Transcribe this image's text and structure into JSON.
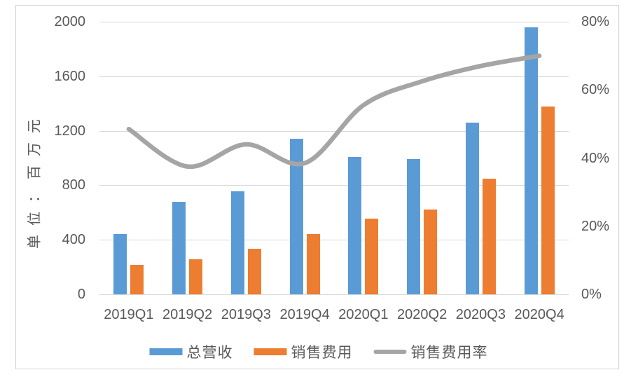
{
  "chart_data": {
    "type": "combo-bar-line",
    "categories": [
      "2019Q1",
      "2019Q2",
      "2019Q3",
      "2019Q4",
      "2020Q1",
      "2020Q2",
      "2020Q3",
      "2020Q4"
    ],
    "series": [
      {
        "key": "revenue",
        "name": "总营收",
        "type": "bar",
        "axis": "left",
        "color": "#5B9BD5",
        "values": [
          440,
          680,
          755,
          1140,
          1010,
          990,
          1260,
          1960
        ]
      },
      {
        "key": "selling-expense",
        "name": "销售费用",
        "type": "bar",
        "axis": "left",
        "color": "#ED7D31",
        "values": [
          215,
          255,
          335,
          440,
          555,
          620,
          850,
          1380
        ]
      },
      {
        "key": "selling-expense-ratio",
        "name": "销售费用率",
        "type": "line",
        "axis": "right",
        "color": "#A5A5A5",
        "unit": "%",
        "values": [
          48.5,
          37.5,
          44,
          38.5,
          55.5,
          62.5,
          67,
          70
        ]
      }
    ],
    "left_axis": {
      "title": "单位：百万元",
      "min": 0,
      "max": 2000,
      "tick_labels": [
        "0",
        "400",
        "800",
        "1200",
        "1600",
        "2000"
      ]
    },
    "right_axis": {
      "min": 0,
      "max": 80,
      "tick_labels": [
        "0%",
        "20%",
        "40%",
        "60%",
        "80%"
      ]
    },
    "grid": "horizontal",
    "legend_position": "bottom"
  },
  "colors": {
    "grid": "#d9d9d9",
    "frame": "#d2d2d2",
    "text": "#595959"
  }
}
